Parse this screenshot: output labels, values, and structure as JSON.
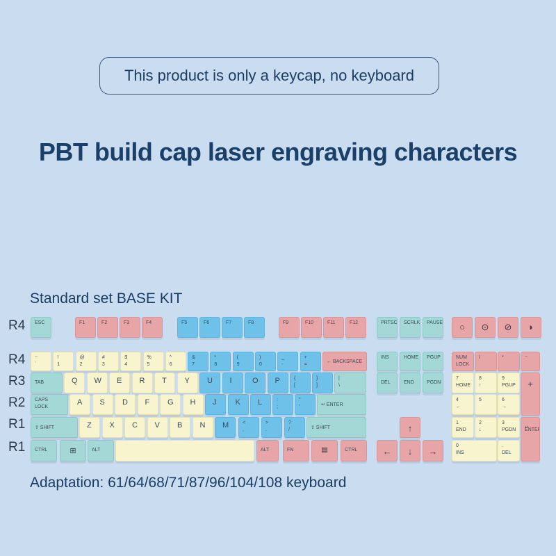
{
  "notice": "This product is only a keycap, no keyboard",
  "headline": "PBT build cap laser engraving characters",
  "set_label": "Standard set BASE KIT",
  "adaptation": "Adaptation: 61/64/68/71/87/96/104/108 keyboard",
  "row_labels": [
    "R4",
    "R4",
    "R3",
    "R2",
    "R1",
    "R1"
  ],
  "colors": {
    "background": "#c9dcf0",
    "mint": "#a3d8d6",
    "pink": "#e7a5a7",
    "blue": "#6ec2ea",
    "cream": "#f8f4cd",
    "text": "#1c3d63"
  },
  "keys": {
    "esc": "ESC",
    "f1": "F1",
    "f2": "F2",
    "f3": "F3",
    "f4": "F4",
    "f5": "F5",
    "f6": "F6",
    "f7": "F7",
    "f8": "F8",
    "f9": "F9",
    "f10": "F10",
    "f11": "F11",
    "f12": "F12",
    "prtsc": "PRTSC",
    "scrlk": "SCRLK",
    "pause": "PAUSE",
    "media_icons": [
      "circle-icon",
      "record-icon",
      "mute-icon",
      "volume-icon"
    ],
    "num_top": [
      [
        "~",
        "`"
      ],
      [
        "!",
        "1"
      ],
      [
        "@",
        "2"
      ],
      [
        "#",
        "3"
      ],
      [
        "$",
        "4"
      ],
      [
        "%",
        "5"
      ],
      [
        "^",
        "6"
      ],
      [
        "&",
        "7"
      ],
      [
        "*",
        "8"
      ],
      [
        "(",
        "9"
      ],
      [
        ")",
        "0"
      ],
      [
        "_",
        "-"
      ],
      [
        "+",
        "="
      ]
    ],
    "backspace": "← BACKSPACE",
    "ins": "INS",
    "home": "HOME",
    "pgup": "PGUP",
    "numlock": [
      "NUM",
      "LOCK"
    ],
    "np_slash": "/",
    "np_star": "*",
    "np_minus": "−",
    "tab": "TAB",
    "q_row": [
      "Q",
      "W",
      "E",
      "R",
      "T",
      "Y",
      "U",
      "I",
      "O",
      "P"
    ],
    "brackets": [
      [
        "{",
        "["
      ],
      [
        "}",
        "]"
      ],
      [
        "|",
        "\\"
      ]
    ],
    "del": "DEL",
    "end": "END",
    "pgdn": "PGDN",
    "np7": [
      "7",
      "HOME"
    ],
    "np8": [
      "8",
      "↑"
    ],
    "np9": [
      "9",
      "PGUP"
    ],
    "np_plus": "+",
    "caps": [
      "CAPS",
      "LOCK"
    ],
    "a_row": [
      "A",
      "S",
      "D",
      "F",
      "G",
      "H",
      "J",
      "K",
      "L"
    ],
    "semi": [
      ":",
      ";"
    ],
    "quote": [
      "\"",
      "'"
    ],
    "enter": "↩ ENTER",
    "np4": [
      "4",
      "←"
    ],
    "np5": [
      "5",
      ""
    ],
    "np6": [
      "6",
      "→"
    ],
    "lshift": "⇧ SHIFT",
    "z_row": [
      "Z",
      "X",
      "C",
      "V",
      "B",
      "N",
      "M"
    ],
    "comma": [
      "<",
      ","
    ],
    "period": [
      ">",
      "."
    ],
    "slash": [
      "?",
      "/"
    ],
    "rshift": "⇧ SHIFT",
    "up": "↑",
    "np1": [
      "1",
      "END"
    ],
    "np2": [
      "2",
      "↓"
    ],
    "np3": [
      "3",
      "PGDN"
    ],
    "np_enter": [
      "↵",
      "ENTER"
    ],
    "ctrl": "CTRL",
    "win_icon": "windows-icon",
    "alt": "ALT",
    "ralt": "ALT",
    "fn": "FN",
    "menu_icon": "menu-icon",
    "rctrl": "CTRL",
    "left": "←",
    "down": "↓",
    "right": "→",
    "np0": [
      "0",
      "INS"
    ],
    "np_dot": [
      ".",
      "DEL"
    ]
  }
}
